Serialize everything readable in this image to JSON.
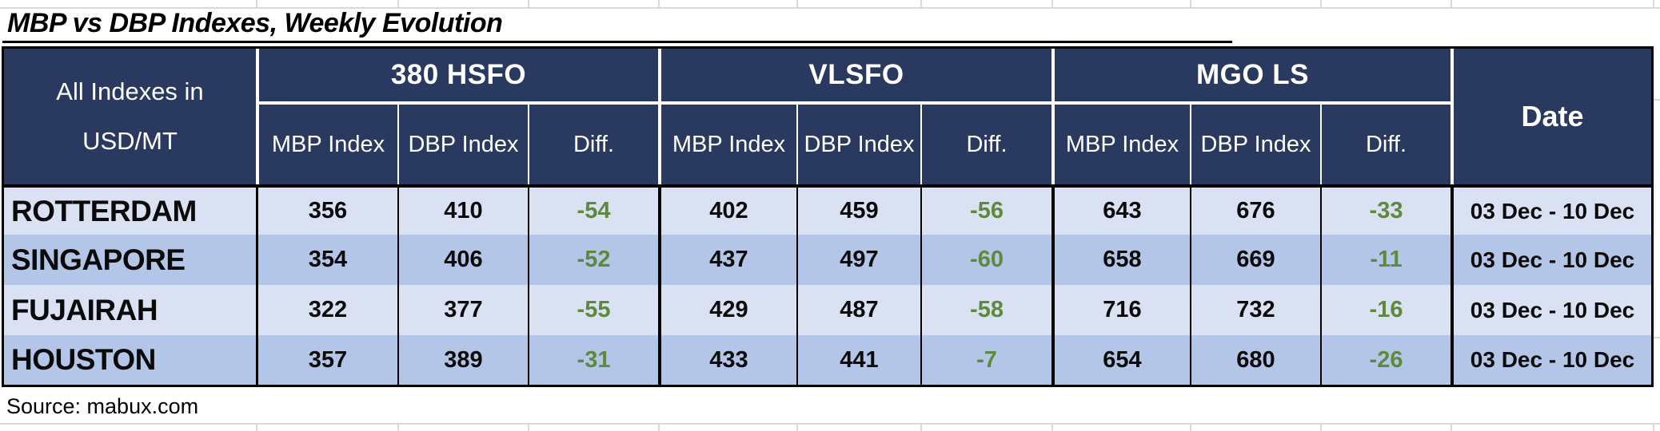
{
  "title": "MBP vs DBP Indexes, Weekly Evolution",
  "source_note": "Source: mabux.com",
  "table": {
    "unit_header": {
      "line1": "All Indexes in",
      "line2": "USD/MT"
    },
    "fuel_groups": [
      {
        "label": "380 HSFO"
      },
      {
        "label": "VLSFO"
      },
      {
        "label": "MGO LS"
      }
    ],
    "sub_headers": [
      "MBP Index",
      "DBP Index",
      "Diff."
    ],
    "date_header": "Date",
    "rows": [
      {
        "port": "ROTTERDAM",
        "values": [
          "356",
          "410",
          "-54",
          "402",
          "459",
          "-56",
          "643",
          "676",
          "-33"
        ],
        "date": "03 Dec - 10 Dec"
      },
      {
        "port": "SINGAPORE",
        "values": [
          "354",
          "406",
          "-52",
          "437",
          "497",
          "-60",
          "658",
          "669",
          "-11"
        ],
        "date": "03 Dec - 10 Dec"
      },
      {
        "port": "FUJAIRAH",
        "values": [
          "322",
          "377",
          "-55",
          "429",
          "487",
          "-58",
          "716",
          "732",
          "-16"
        ],
        "date": "03 Dec - 10 Dec"
      },
      {
        "port": "HOUSTON",
        "values": [
          "357",
          "389",
          "-31",
          "433",
          "441",
          "-7",
          "654",
          "680",
          "-26"
        ],
        "date": "03 Dec - 10 Dec"
      }
    ]
  },
  "colors": {
    "header_navy": "#29395F",
    "row_light": "#D9E1F2",
    "row_dark": "#B4C6E7",
    "diff_green": "#5D8A3C",
    "gridline_gray": "#D9D9D9"
  }
}
